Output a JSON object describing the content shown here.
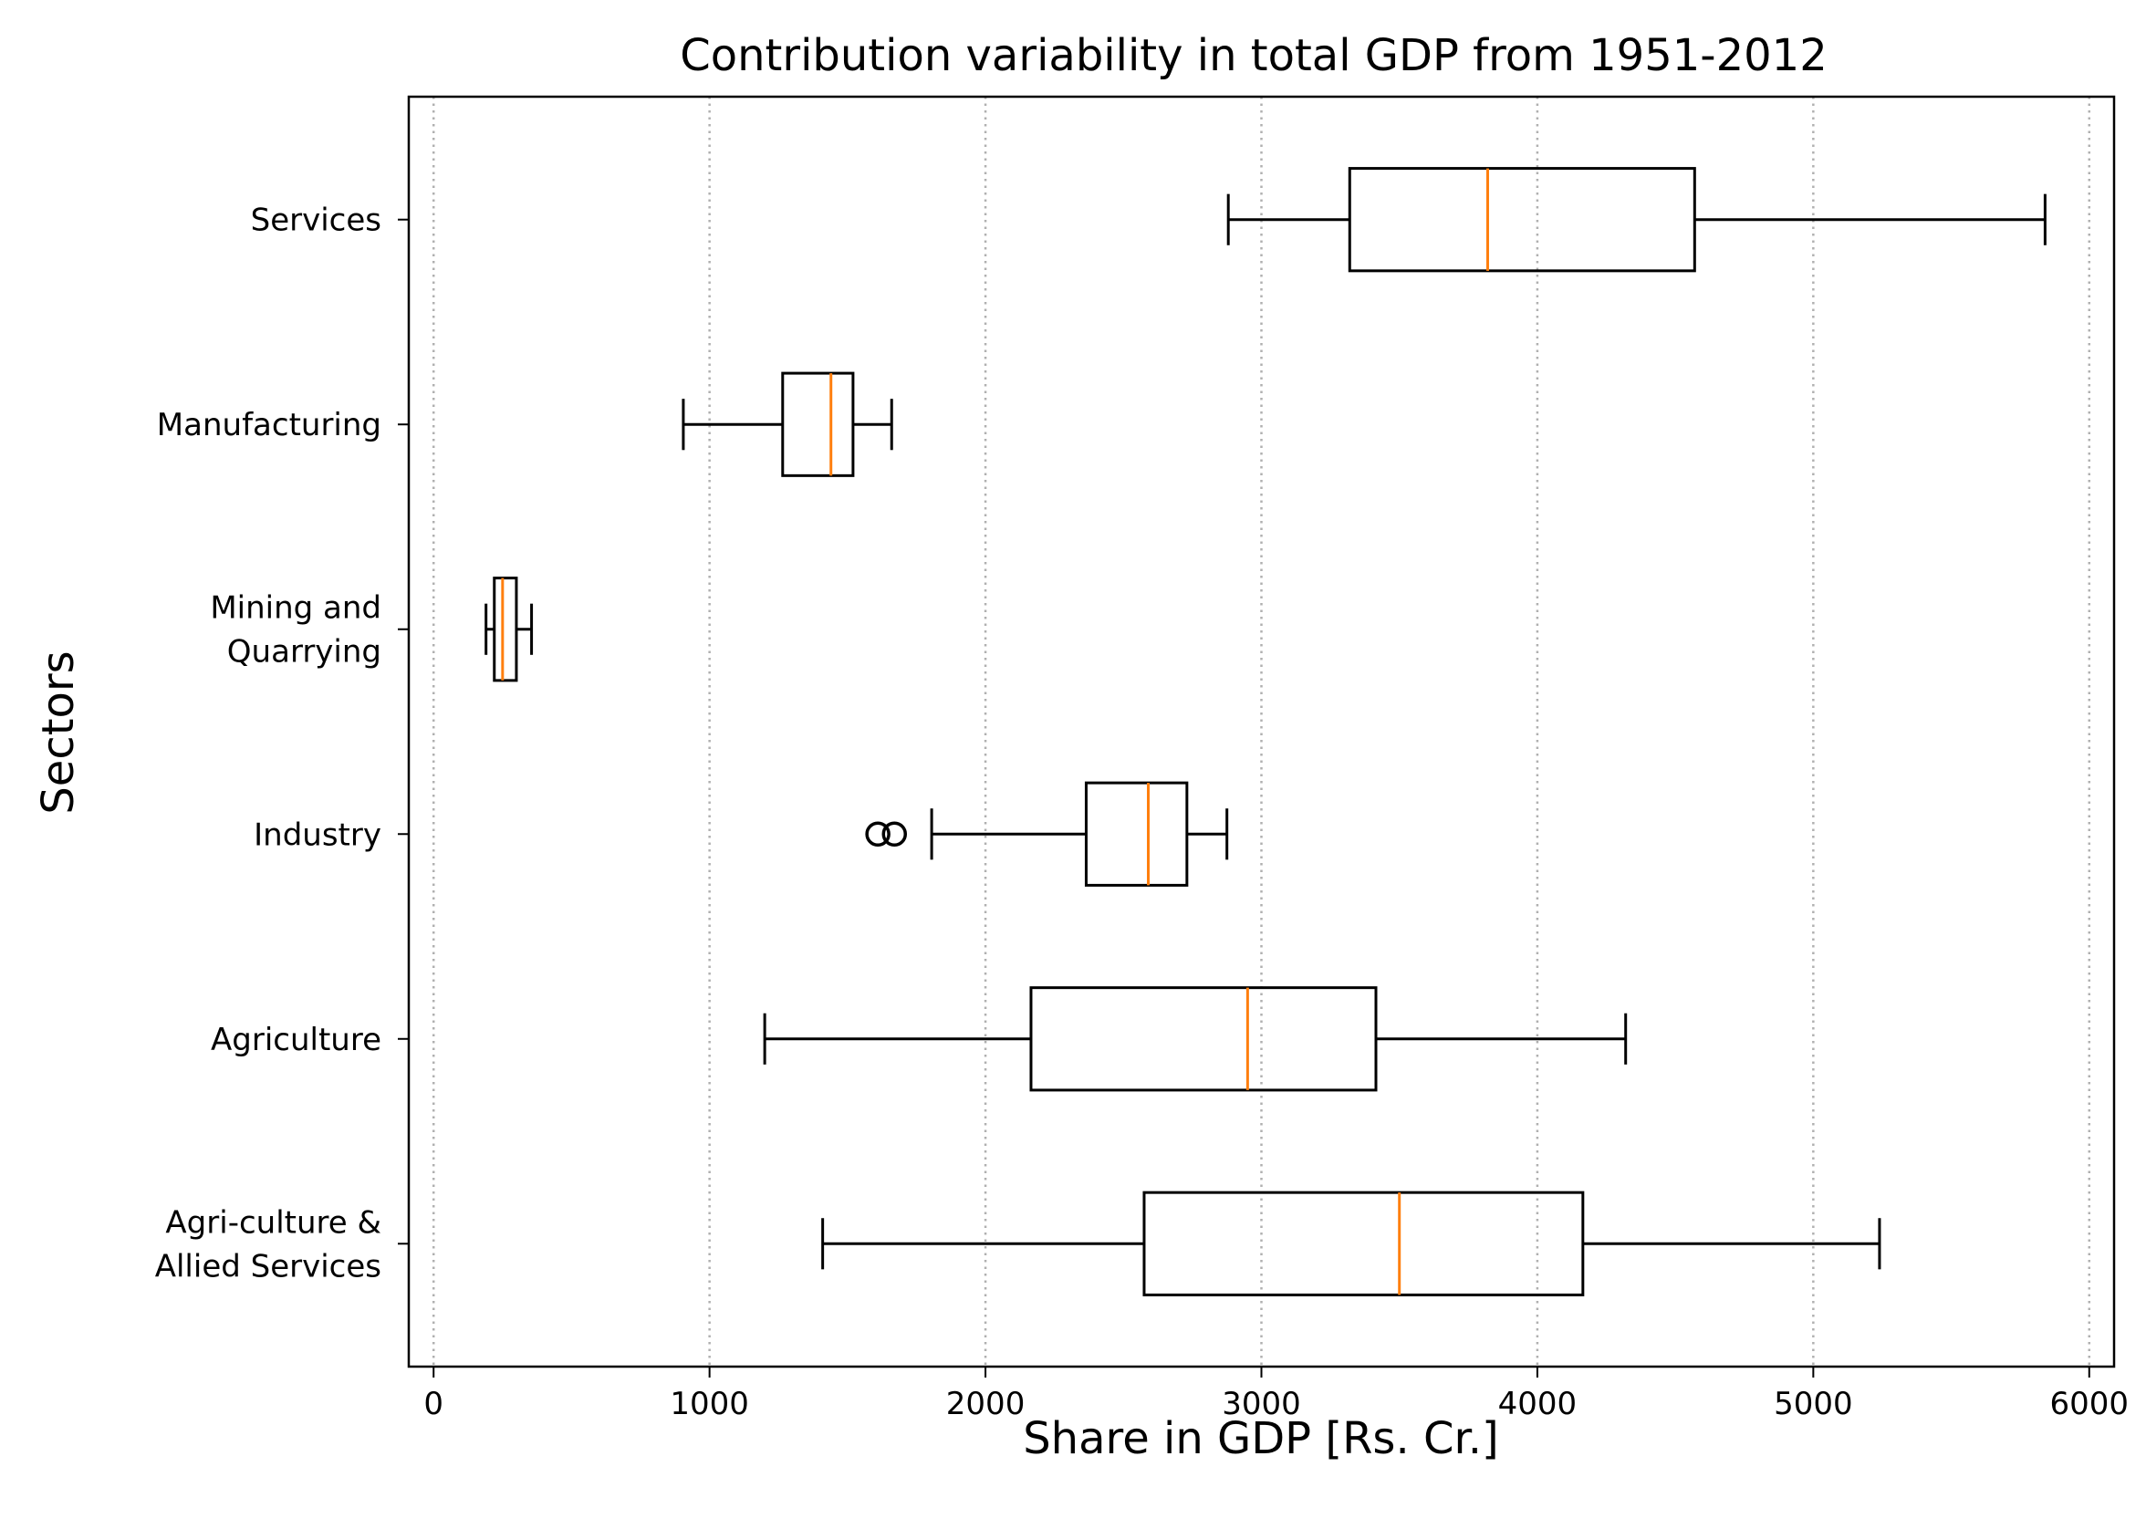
{
  "chart_data": {
    "type": "boxplot",
    "orientation": "horizontal",
    "title": "Contribution variability in total GDP from 1951-2012",
    "xlabel": "Share in GDP [Rs. Cr.]",
    "ylabel": "Sectors",
    "xlim": [
      -90,
      6090
    ],
    "xticks": [
      0,
      1000,
      2000,
      3000,
      4000,
      5000,
      6000
    ],
    "grid": "x, dotted",
    "colors": {
      "box": "#000000",
      "median": "#ff7f0e",
      "grid": "#b0b0b0"
    },
    "categories": [
      "Agri-culture &\nAllied Services",
      "Agriculture",
      "Industry",
      "Mining and\nQuarrying",
      "Manufacturing",
      "Services"
    ],
    "boxes": [
      {
        "category": "Agri-culture &\nAllied Services",
        "whislo": 1410,
        "q1": 2575,
        "med": 3500,
        "q3": 4165,
        "whishi": 5240,
        "fliers": []
      },
      {
        "category": "Agriculture",
        "whislo": 1200,
        "q1": 2165,
        "med": 2950,
        "q3": 3415,
        "whishi": 4320,
        "fliers": []
      },
      {
        "category": "Industry",
        "whislo": 1805,
        "q1": 2365,
        "med": 2590,
        "q3": 2730,
        "whishi": 2875,
        "fliers": [
          1610,
          1670
        ]
      },
      {
        "category": "Mining and\nQuarrying",
        "whislo": 190,
        "q1": 220,
        "med": 250,
        "q3": 300,
        "whishi": 355,
        "fliers": []
      },
      {
        "category": "Manufacturing",
        "whislo": 905,
        "q1": 1265,
        "med": 1440,
        "q3": 1520,
        "whishi": 1660,
        "fliers": []
      },
      {
        "category": "Services",
        "whislo": 2880,
        "q1": 3320,
        "med": 3820,
        "q3": 4570,
        "whishi": 5840,
        "fliers": []
      }
    ]
  }
}
